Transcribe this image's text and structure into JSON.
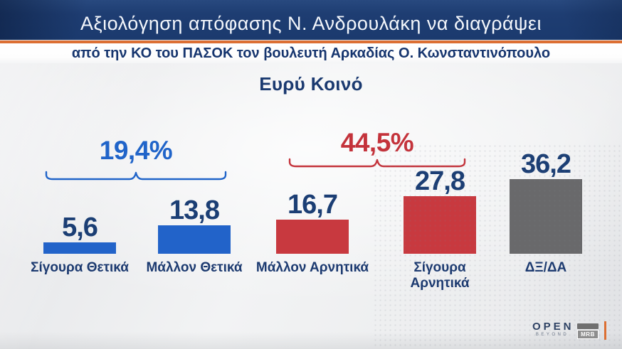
{
  "header": {
    "title": "Αξιολόγηση απόφασης Ν. Ανδρουλάκη να διαγράψει",
    "subtitle": "από την ΚΟ του ΠΑΣΟΚ τον βουλευτή Αρκαδίας Ο. Κωνσταντινόπουλο"
  },
  "chart_data": {
    "type": "bar",
    "title": "Ευρύ Κοινό",
    "categories": [
      "Σίγουρα Θετικά",
      "Μάλλον Θετικά",
      "Μάλλον Αρνητικά",
      "Σίγουρα Αρνητικά",
      "ΔΞ/ΔΑ"
    ],
    "values": [
      5.6,
      13.8,
      16.7,
      27.8,
      36.2
    ],
    "value_labels": [
      "5,6",
      "13,8",
      "16,7",
      "27,8",
      "36,2"
    ],
    "bar_colors": [
      "#2263c9",
      "#2263c9",
      "#c8393f",
      "#c8393f",
      "#69696b"
    ],
    "groups": [
      {
        "label": "19,4%",
        "color": "#2064c9",
        "bars": [
          0,
          1
        ]
      },
      {
        "label": "44,5%",
        "color": "#c4333b",
        "bars": [
          2,
          3
        ]
      }
    ],
    "ylim": [
      0,
      40
    ],
    "grid": false,
    "legend": false,
    "value_label_color": "#1b3e74",
    "category_label_color": "#1c3a70"
  },
  "footer": {
    "open_label": "OPEN",
    "open_sublabel": "BEYOND",
    "mrb_label": "MRB"
  },
  "colors": {
    "header_bg": "#1e3d72",
    "accent_orange": "#dc6f33",
    "navy_text": "#16356e",
    "chart_bg": "#e9eaec"
  }
}
